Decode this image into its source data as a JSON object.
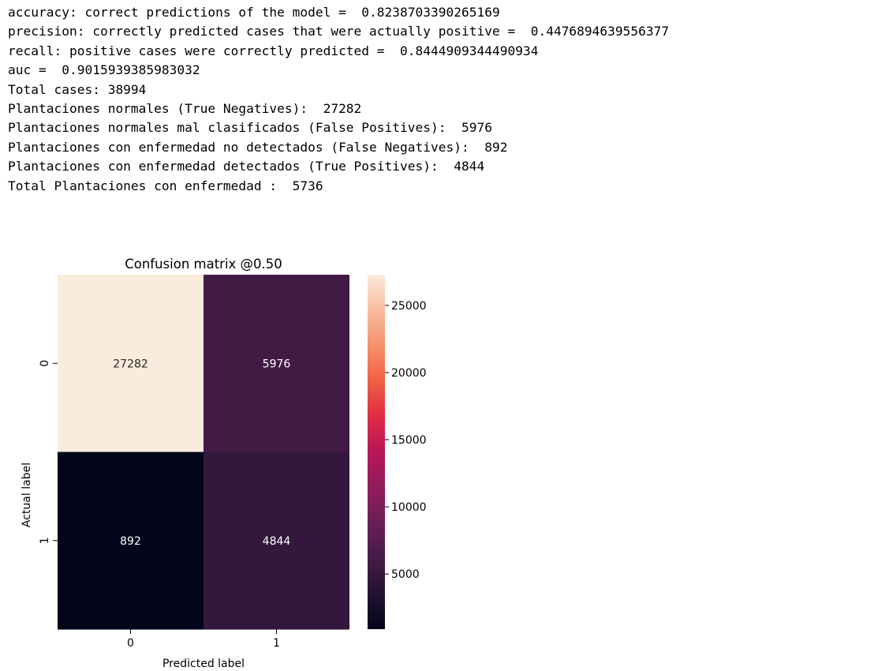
{
  "console_output": {
    "lines": [
      "accuracy: correct predictions of the model =  0.8238703390265169",
      "precision: correctly predicted cases that were actually positive =  0.4476894639556377",
      "recall: positive cases were correctly predicted =  0.8444909344490934",
      "auc =  0.9015939385983032",
      "Total cases: 38994",
      "Plantaciones normales (True Negatives):  27282",
      "Plantaciones normales mal clasificados (False Positives):  5976",
      "Plantaciones con enfermedad no detectados (False Negatives):  892",
      "Plantaciones con enfermedad detectados (True Positives):  4844",
      "Total Plantaciones con enfermedad :  5736"
    ]
  },
  "chart_data": {
    "type": "heatmap",
    "title": "Confusion matrix @0.50",
    "xlabel": "Predicted label",
    "ylabel": "Actual label",
    "x_categories": [
      "0",
      "1"
    ],
    "y_categories": [
      "0",
      "1"
    ],
    "matrix": [
      [
        27282,
        5976
      ],
      [
        892,
        4844
      ]
    ],
    "cell_labels": [
      [
        "27282",
        "5976"
      ],
      [
        "892",
        "4844"
      ]
    ],
    "colorscale": "rocket",
    "colorbar": {
      "range": [
        892,
        27282
      ],
      "ticks": [
        5000,
        10000,
        15000,
        20000,
        25000
      ],
      "tick_labels": [
        "5000",
        "10000",
        "15000",
        "20000",
        "25000"
      ]
    }
  }
}
